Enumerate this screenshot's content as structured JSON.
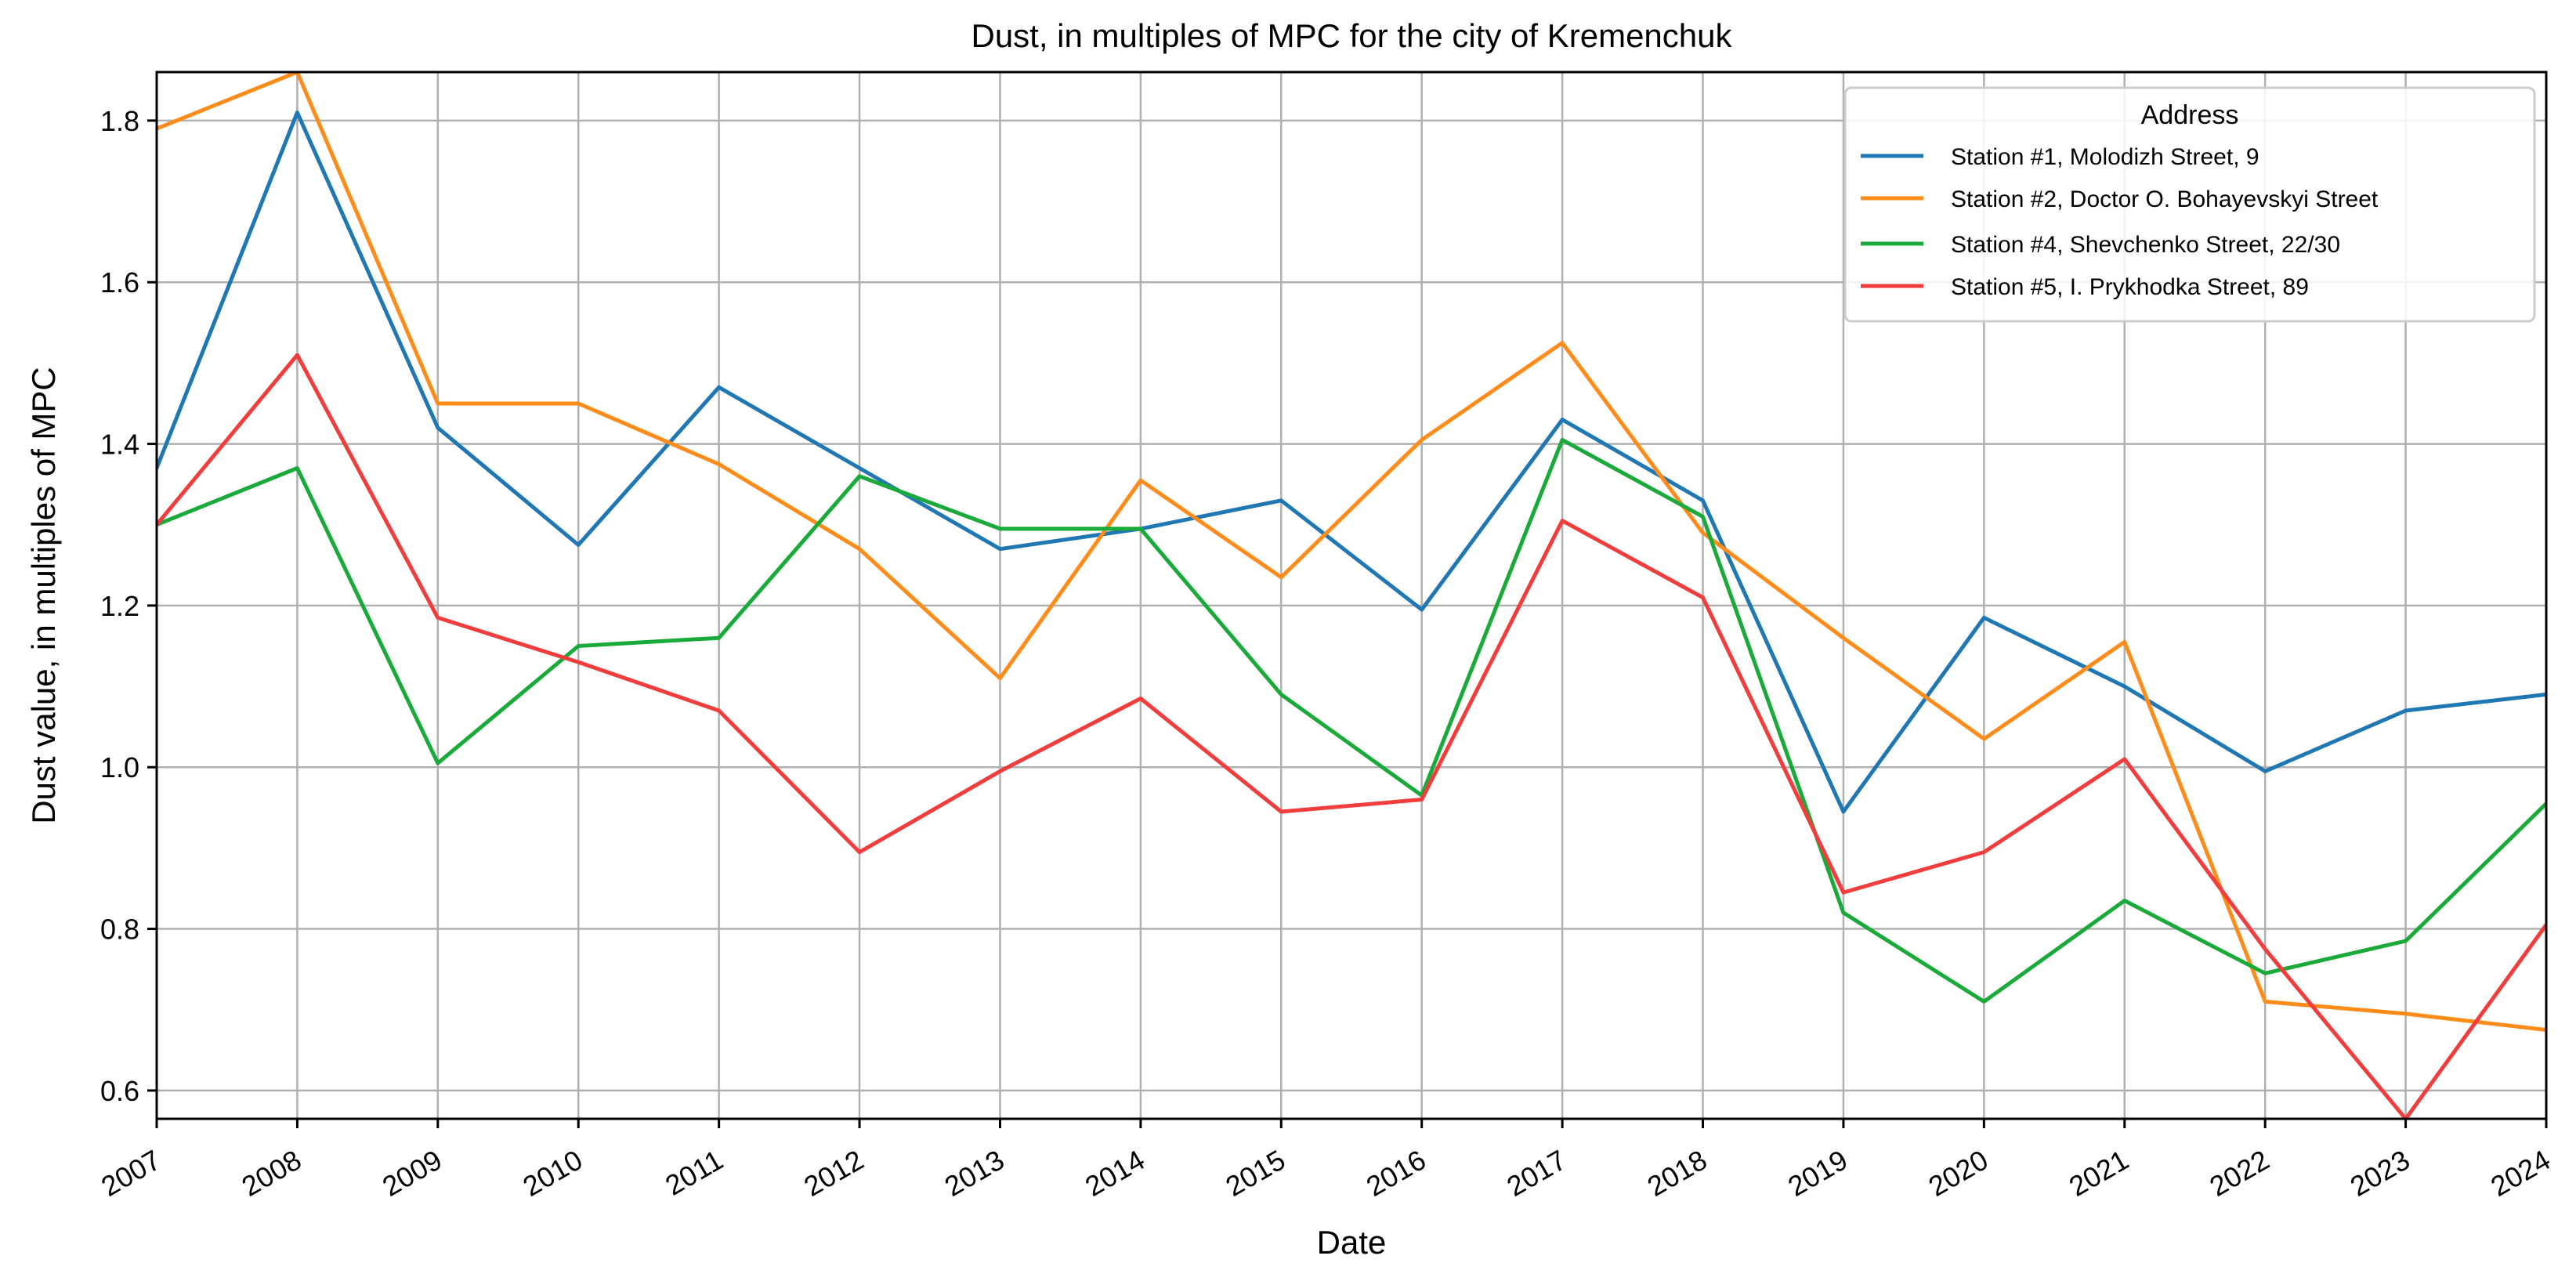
{
  "chart_data": {
    "type": "line",
    "title": "Dust, in multiples of MPC for the city of Kremenchuk",
    "xlabel": "Date",
    "ylabel": "Dust value, in multiples of MPC",
    "x": [
      "2007",
      "2008",
      "2009",
      "2010",
      "2011",
      "2012",
      "2013",
      "2014",
      "2015",
      "2016",
      "2017",
      "2018",
      "2019",
      "2020",
      "2021",
      "2022",
      "2023",
      "2024"
    ],
    "xlim": [
      2007,
      2024
    ],
    "ylim": [
      0.565,
      1.86
    ],
    "yticks": [
      "0.6",
      "0.8",
      "1.0",
      "1.2",
      "1.4",
      "1.6",
      "1.8"
    ],
    "grid": true,
    "legend": {
      "title": "Address",
      "placement": "top-right"
    },
    "series": [
      {
        "name": "Station #1, Molodizh Street, 9",
        "color": "#1f77b4",
        "values": [
          1.37,
          1.81,
          1.42,
          1.275,
          1.47,
          1.37,
          1.27,
          1.295,
          1.33,
          1.195,
          1.43,
          1.33,
          0.945,
          1.185,
          1.1,
          0.995,
          1.07,
          1.09
        ]
      },
      {
        "name": "Station #2, Doctor O. Bohayevskyi Street",
        "color": "#ff8c1a",
        "values": [
          1.79,
          1.86,
          1.45,
          1.45,
          1.375,
          1.27,
          1.11,
          1.355,
          1.235,
          1.405,
          1.525,
          1.29,
          1.16,
          1.035,
          1.155,
          0.71,
          0.695,
          0.675
        ]
      },
      {
        "name": "Station #4, Shevchenko Street, 22/30",
        "color": "#1aaa3a",
        "values": [
          1.3,
          1.37,
          1.005,
          1.15,
          1.16,
          1.36,
          1.295,
          1.295,
          1.09,
          0.965,
          1.405,
          1.31,
          0.82,
          0.71,
          0.835,
          0.745,
          0.785,
          0.955
        ]
      },
      {
        "name": "Station #5, I. Prykhodka Street, 89",
        "color": "#f23d3d",
        "values": [
          1.3,
          1.51,
          1.185,
          1.13,
          1.07,
          0.895,
          0.995,
          1.085,
          0.945,
          0.96,
          1.305,
          1.21,
          0.845,
          0.895,
          1.01,
          0.775,
          0.565,
          0.805
        ]
      }
    ]
  }
}
